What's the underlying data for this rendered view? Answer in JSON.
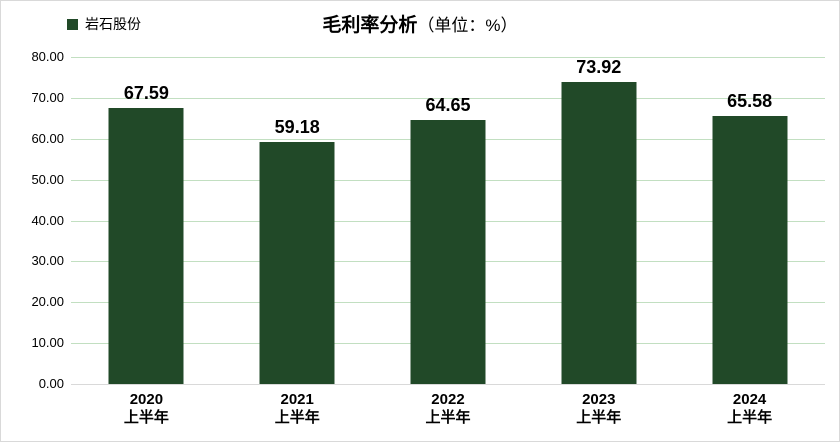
{
  "legend": {
    "label": "岩石股份"
  },
  "title": {
    "main": "毛利率分析",
    "unit": "（单位：%）"
  },
  "colors": {
    "bar": "#214928",
    "legend_swatch": "#214928",
    "gridline": "#c2dfc1",
    "axis_line": "#d9d9d9",
    "text": "#000000"
  },
  "chart_data": {
    "type": "bar",
    "title": "毛利率分析（单位：%）",
    "series_name": "岩石股份",
    "categories": [
      {
        "year": "2020",
        "period": "上半年"
      },
      {
        "year": "2021",
        "period": "上半年"
      },
      {
        "year": "2022",
        "period": "上半年"
      },
      {
        "year": "2023",
        "period": "上半年"
      },
      {
        "year": "2024",
        "period": "上半年"
      }
    ],
    "values": [
      67.59,
      59.18,
      64.65,
      73.92,
      65.58
    ],
    "value_labels": [
      "67.59",
      "59.18",
      "64.65",
      "73.92",
      "65.58"
    ],
    "xlabel": "",
    "ylabel": "",
    "ylim": [
      0,
      80
    ],
    "ytick_step": 10,
    "ytick_labels": [
      "80.00",
      "70.00",
      "60.00",
      "50.00",
      "40.00",
      "30.00",
      "20.00",
      "10.00",
      "0.00"
    ],
    "grid": "horizontal",
    "legend_position": "top-left",
    "data_labels": "above-bars"
  }
}
